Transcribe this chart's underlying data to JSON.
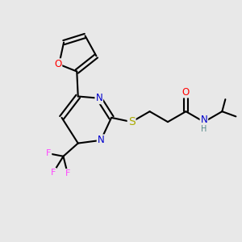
{
  "bg_color": "#e8e8e8",
  "bond_color": "#000000",
  "bond_width": 1.5,
  "atom_colors": {
    "O": "#ff0000",
    "N": "#0000cc",
    "S": "#aaaa00",
    "F": "#ff44ff",
    "H": "#558888",
    "C": "#000000"
  },
  "font_size": 8.5,
  "figsize": [
    3.0,
    3.0
  ],
  "dpi": 100
}
